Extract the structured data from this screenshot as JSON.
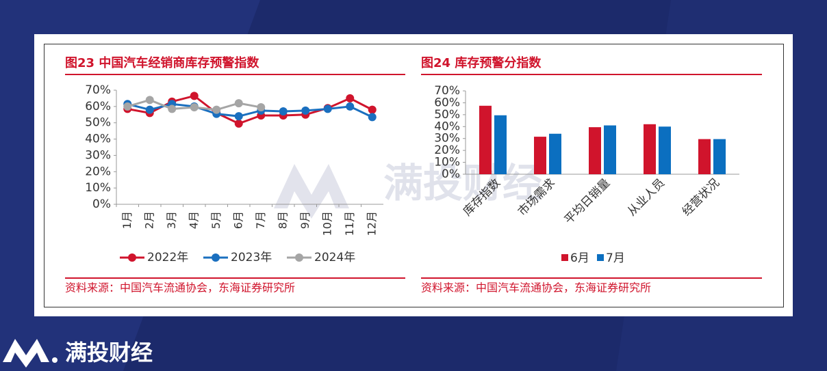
{
  "brand": "满投财经",
  "chart_data": [
    {
      "type": "line",
      "title": "图23  中国汽车经销商库存预警指数",
      "categories": [
        "1月",
        "2月",
        "3月",
        "4月",
        "5月",
        "6月",
        "7月",
        "8月",
        "9月",
        "10月",
        "11月",
        "12月"
      ],
      "series": [
        {
          "name": "2022年",
          "color": "#d0142c",
          "values": [
            58.5,
            56,
            63,
            66.5,
            56,
            49.5,
            54.5,
            54.5,
            55,
            59,
            65,
            58
          ]
        },
        {
          "name": "2023年",
          "color": "#1a6fbf",
          "values": [
            61.5,
            58,
            61.5,
            60,
            55.5,
            54,
            57.5,
            57,
            57.5,
            58.5,
            60,
            53.5
          ]
        },
        {
          "name": "2024年",
          "color": "#a5a5a5",
          "values": [
            60,
            64,
            58.5,
            59.5,
            58,
            62,
            59.5,
            null,
            null,
            null,
            null,
            null
          ]
        }
      ],
      "ylim": [
        0,
        70
      ],
      "yticks": [
        {
          "value": 0,
          "label": "0%"
        },
        {
          "value": 10,
          "label": "10%"
        },
        {
          "value": 20,
          "label": "20%"
        },
        {
          "value": 30,
          "label": "30%"
        },
        {
          "value": 40,
          "label": "40%"
        },
        {
          "value": 50,
          "label": "50%"
        },
        {
          "value": 60,
          "label": "60%"
        },
        {
          "value": 70,
          "label": "70%"
        }
      ],
      "legend": "bottom",
      "source": "资料来源：中国汽车流通协会，东海证券研究所"
    },
    {
      "type": "bar",
      "title": "图24  库存预警分指数",
      "categories": [
        "库存指数",
        "市场需求",
        "平均日销量",
        "从业人员",
        "经营状况"
      ],
      "series": [
        {
          "name": "6月",
          "color": "#d0142c",
          "values": [
            57.5,
            31.5,
            39.5,
            42,
            29.5
          ]
        },
        {
          "name": "7月",
          "color": "#0b6fc0",
          "values": [
            49.5,
            34,
            41,
            40,
            29.5
          ]
        }
      ],
      "ylim": [
        0,
        70
      ],
      "yticks": [
        {
          "value": 0,
          "label": "0%"
        },
        {
          "value": 10,
          "label": "10%"
        },
        {
          "value": 20,
          "label": "20%"
        },
        {
          "value": 30,
          "label": "30%"
        },
        {
          "value": 40,
          "label": "40%"
        },
        {
          "value": 50,
          "label": "50%"
        },
        {
          "value": 60,
          "label": "60%"
        },
        {
          "value": 70,
          "label": "70%"
        }
      ],
      "legend": "bottom",
      "source": "资料来源：中国汽车流通协会，东海证券研究所"
    }
  ]
}
